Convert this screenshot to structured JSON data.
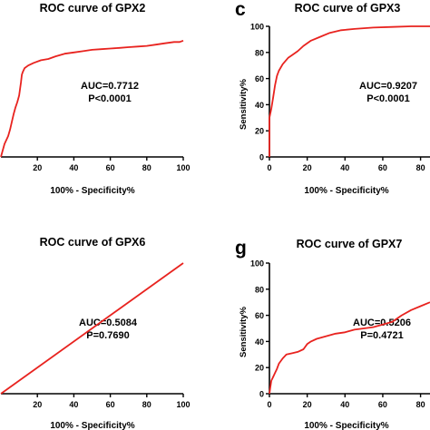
{
  "chart_data": [
    {
      "panel": "",
      "type": "line",
      "title": "ROC curve of GPX2",
      "xlabel": "100% - Specificity%",
      "ylabel": "",
      "xlim": [
        0,
        100
      ],
      "ylim": [
        0,
        100
      ],
      "x_ticks": [
        20,
        40,
        60,
        80,
        100
      ],
      "y_ticks": [],
      "annotation": [
        "AUC=0.7712",
        "P<0.0001"
      ],
      "line_color": "#e8231f",
      "x": [
        0,
        1,
        2,
        4,
        5,
        6,
        7,
        8,
        9,
        10,
        11,
        11.5,
        12,
        13,
        15,
        18,
        22,
        26,
        30,
        35,
        40,
        45,
        50,
        55,
        60,
        65,
        70,
        75,
        80,
        85,
        90,
        95,
        98,
        100
      ],
      "y": [
        0,
        5,
        10,
        16,
        21,
        27,
        33,
        38,
        42,
        47,
        57,
        63,
        65,
        68,
        70,
        72,
        74,
        75,
        77,
        79,
        80,
        81,
        82,
        82.5,
        83,
        83.5,
        84,
        84.5,
        85,
        86,
        87,
        88,
        88,
        89
      ]
    },
    {
      "panel": "c",
      "type": "line",
      "title": "ROC curve of GPX3",
      "xlabel": "100% - Specificity%",
      "ylabel": "Sensitivity%",
      "xlim": [
        0,
        85
      ],
      "ylim": [
        0,
        100
      ],
      "x_ticks": [
        0,
        20,
        40,
        60,
        80
      ],
      "y_ticks": [
        0,
        20,
        40,
        60,
        80,
        100
      ],
      "annotation": [
        "AUC=0.9207",
        "P<0.0001"
      ],
      "line_color": "#e8231f",
      "x": [
        0,
        0,
        1,
        2,
        3,
        4,
        5,
        7,
        10,
        12,
        15,
        18,
        22,
        27,
        32,
        38,
        45,
        55,
        65,
        75,
        85
      ],
      "y": [
        0,
        30,
        37,
        46,
        55,
        62,
        66,
        71,
        76,
        78,
        81,
        85,
        89,
        92,
        95,
        97,
        98,
        99,
        99.5,
        100,
        100
      ]
    },
    {
      "panel": "",
      "type": "line",
      "title": "ROC curve of GPX6",
      "xlabel": "100% - Specificity%",
      "ylabel": "",
      "xlim": [
        0,
        100
      ],
      "ylim": [
        0,
        100
      ],
      "x_ticks": [
        20,
        40,
        60,
        80,
        100
      ],
      "y_ticks": [],
      "annotation": [
        "AUC=0.5084",
        "P=0.7690"
      ],
      "line_color": "#e8231f",
      "x": [
        0,
        100
      ],
      "y": [
        0,
        100
      ]
    },
    {
      "panel": "g",
      "type": "line",
      "title": "ROC curve of GPX7",
      "xlabel": "100% - Specificity%",
      "ylabel": "Sensitivity%",
      "xlim": [
        0,
        85
      ],
      "ylim": [
        0,
        100
      ],
      "x_ticks": [
        0,
        20,
        40,
        60,
        80
      ],
      "y_ticks": [
        0,
        20,
        40,
        60,
        80,
        100
      ],
      "annotation": [
        "AUC=0.5206",
        "P=0.4721"
      ],
      "line_color": "#e8231f",
      "x": [
        0,
        0.5,
        1,
        2,
        3,
        4,
        5,
        7,
        9,
        12,
        15,
        18,
        20,
        22,
        25,
        30,
        35,
        40,
        45,
        50,
        55,
        60,
        65,
        70,
        75,
        80,
        85
      ],
      "y": [
        0,
        5,
        10,
        13,
        16,
        19,
        23,
        27,
        30,
        31,
        32,
        34,
        38,
        40,
        42,
        44,
        46,
        47,
        49,
        50,
        51,
        53,
        55,
        60,
        64,
        67,
        70
      ]
    }
  ]
}
